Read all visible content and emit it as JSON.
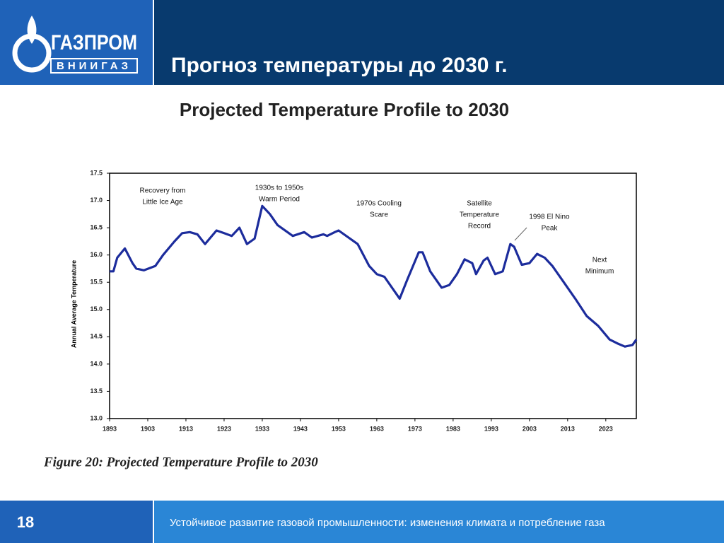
{
  "header": {
    "logo_top": "ГАЗПРОМ",
    "logo_bottom": "ВНИИГАЗ",
    "title": "Прогноз температуры до 2030 г."
  },
  "chart_data": {
    "type": "line",
    "title": "Projected Temperature Profile to 2030",
    "y_label": "Annual Average Temperature",
    "x": [
      1893,
      1894,
      1895,
      1897,
      1899,
      1900,
      1902,
      1905,
      1907,
      1910,
      1912,
      1914,
      1916,
      1918,
      1921,
      1923,
      1925,
      1927,
      1929,
      1931,
      1933,
      1935,
      1937,
      1941,
      1944,
      1946,
      1949,
      1950,
      1952,
      1953,
      1958,
      1961,
      1963,
      1965,
      1969,
      1971,
      1974,
      1975,
      1977,
      1980,
      1982,
      1984,
      1986,
      1988,
      1989,
      1991,
      1992,
      1994,
      1996,
      1998,
      1999,
      2001,
      2003,
      2005,
      2007,
      2009,
      2012,
      2015,
      2018,
      2021,
      2024,
      2026,
      2028,
      2030,
      2031
    ],
    "series": [
      {
        "name": "Temperature",
        "color": "#1c2c9c",
        "values": [
          15.7,
          15.7,
          15.95,
          16.12,
          15.85,
          15.75,
          15.72,
          15.8,
          16.0,
          16.25,
          16.4,
          16.42,
          16.38,
          16.2,
          16.45,
          16.4,
          16.35,
          16.5,
          16.2,
          16.3,
          16.9,
          16.75,
          16.55,
          16.35,
          16.42,
          16.32,
          16.38,
          16.35,
          16.42,
          16.45,
          16.2,
          15.8,
          15.65,
          15.6,
          15.2,
          15.55,
          16.05,
          16.05,
          15.7,
          15.4,
          15.45,
          15.65,
          15.92,
          15.85,
          15.65,
          15.9,
          15.95,
          15.65,
          15.7,
          16.2,
          16.15,
          15.82,
          15.85,
          16.02,
          15.95,
          15.8,
          15.5,
          15.2,
          14.88,
          14.7,
          14.45,
          14.38,
          14.32,
          14.35,
          14.45
        ]
      }
    ],
    "xlim": [
      1893,
      2031
    ],
    "xticks": [
      1893,
      1903,
      1913,
      1923,
      1933,
      1943,
      1953,
      1963,
      1973,
      1983,
      1993,
      2003,
      2013,
      2023
    ],
    "ylim": [
      13,
      17.5
    ],
    "yticks": [
      {
        "value": 13,
        "label": "13.0"
      },
      13.5,
      {
        "value": 14,
        "label": "14.0"
      },
      14.5,
      {
        "value": 15,
        "label": "15.0"
      },
      15.5,
      {
        "value": 16,
        "label": "16.0"
      },
      16.5,
      {
        "value": 17,
        "label": "17.0"
      },
      17.5
    ],
    "annotations": [
      [
        "Recovery from",
        "Little Ice Age"
      ],
      [
        "1930s to 1950s",
        "Warm Period"
      ],
      [
        "1970s Cooling",
        "Scare"
      ],
      [
        "Satellite",
        "Temperature",
        "Record"
      ],
      [
        "1998 El Nino",
        "Peak"
      ],
      [
        "Next",
        "Minimum"
      ]
    ],
    "caption": "Figure 20: Projected Temperature Profile to 2030"
  },
  "footer": {
    "page": "18",
    "text": "Устойчивое развитие газовой  промышленности: изменения климата и потребление газа"
  }
}
